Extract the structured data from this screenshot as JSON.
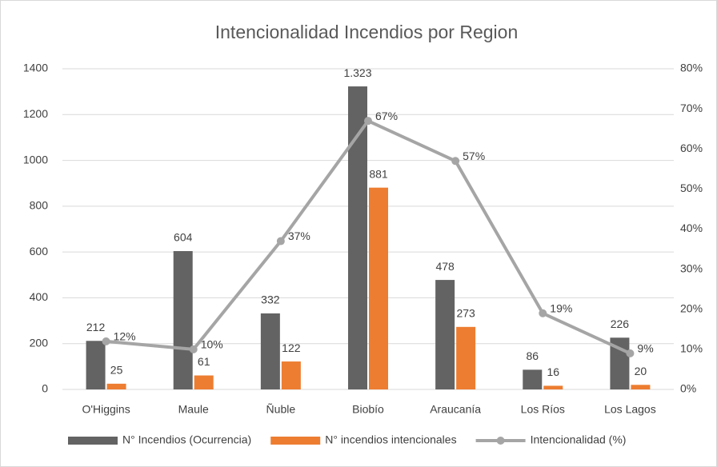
{
  "chart_data": {
    "type": "bar_line",
    "title": "Intencionalidad Incendios por Region",
    "categories": [
      "O'Higgins",
      "Maule",
      "Ñuble",
      "Biobío",
      "Araucanía",
      "Los Ríos",
      "Los Lagos"
    ],
    "series": [
      {
        "name": "N° Incendios (Ocurrencia)",
        "color": "#636363",
        "type": "bar",
        "values": [
          212,
          604,
          332,
          1323,
          478,
          86,
          226
        ],
        "value_labels": [
          "212",
          "604",
          "332",
          "1.323",
          "478",
          "86",
          "226"
        ]
      },
      {
        "name": "N° incendios intencionales",
        "color": "#ed7d31",
        "type": "bar",
        "values": [
          25,
          61,
          122,
          881,
          273,
          16,
          20
        ]
      },
      {
        "name": "Intencionalidad (%)",
        "color": "#a5a5a5",
        "type": "line",
        "axis": "y2",
        "values": [
          12,
          10,
          37,
          67,
          57,
          19,
          9
        ],
        "value_labels": [
          "12%",
          "10%",
          "37%",
          "67%",
          "57%",
          "19%",
          "9%"
        ]
      }
    ],
    "ylim": [
      0,
      1400
    ],
    "yticks": [
      0,
      200,
      400,
      600,
      800,
      1000,
      1200,
      1400
    ],
    "y2lim": [
      0,
      80
    ],
    "y2ticks": [
      {
        "value": 0,
        "label": "0%"
      },
      {
        "value": 10,
        "label": "10%"
      },
      {
        "value": 20,
        "label": "20%"
      },
      {
        "value": 30,
        "label": "30%"
      },
      {
        "value": 40,
        "label": "40%"
      },
      {
        "value": 50,
        "label": "50%"
      },
      {
        "value": 60,
        "label": "60%"
      },
      {
        "value": 70,
        "label": "70%"
      },
      {
        "value": 80,
        "label": "80%"
      }
    ],
    "grid": true,
    "legend": "bottom"
  }
}
